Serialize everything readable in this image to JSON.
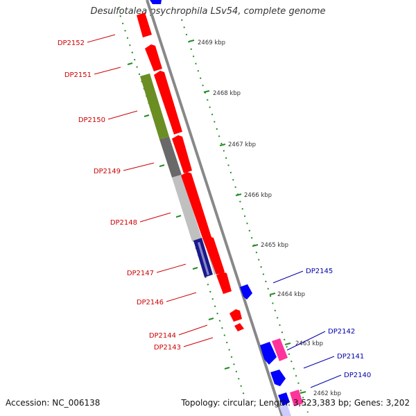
{
  "title": "Desulfotalea psychrophila LSv54, complete genome",
  "footer": {
    "accession": "Accession: NC_006138",
    "summary": "Topology: circular; Length: 3,523,383 bp; Genes: 3,202"
  },
  "colors": {
    "forward_gene": "#ff0000",
    "reverse_gene": "#0000ff",
    "forward_label": "#cc0000",
    "reverse_label": "#0000aa",
    "backbone": "#888888",
    "ticks": "#228b22",
    "cds_olive": "#6b8e23",
    "cds_dark_gray": "#696969",
    "cds_light_gray": "#c0c0c0",
    "cds_navy": "#1a1a8c",
    "rna_pink": "#ff3399"
  },
  "scale_labels": [
    "2469 kbp",
    "2468 kbp",
    "2467 kbp",
    "2466 kbp",
    "2465 kbp",
    "2464 kbp",
    "2463 kbp",
    "2462 kbp"
  ],
  "forward_genes": [
    "DP2152",
    "DP2151",
    "DP2150",
    "DP2149",
    "DP2148",
    "DP2147",
    "DP2146",
    "DP2144",
    "DP2143"
  ],
  "reverse_genes": [
    "DP2145",
    "DP2142",
    "DP2141",
    "DP2140"
  ]
}
